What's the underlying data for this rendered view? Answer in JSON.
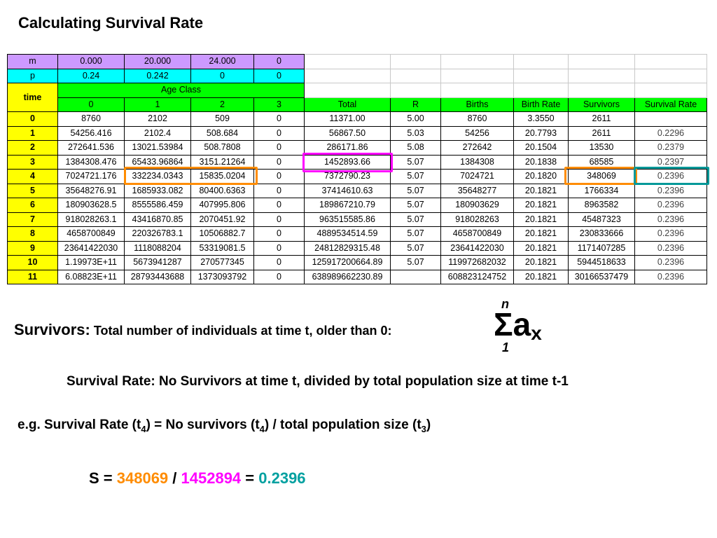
{
  "title": "Calculating Survival Rate",
  "table": {
    "m_label": "m",
    "m_values": [
      "0.000",
      "20.000",
      "24.000",
      "0"
    ],
    "p_label": "p",
    "p_values": [
      "0.24",
      "0.242",
      "0",
      "0"
    ],
    "time_label": "time",
    "age_class_label": "Age Class",
    "age_classes": [
      "0",
      "1",
      "2",
      "3"
    ],
    "extra_headers": [
      "Total",
      "R",
      "Births",
      "Birth Rate",
      "Survivors",
      "Survival Rate"
    ],
    "rows": [
      [
        "0",
        "8760",
        "2102",
        "509",
        "0",
        "11371.00",
        "5.00",
        "8760",
        "3.3550",
        "2611",
        ""
      ],
      [
        "1",
        "54256.416",
        "2102.4",
        "508.684",
        "0",
        "56867.50",
        "5.03",
        "54256",
        "20.7793",
        "2611",
        "0.2296"
      ],
      [
        "2",
        "272641.536",
        "13021.53984",
        "508.7808",
        "0",
        "286171.86",
        "5.08",
        "272642",
        "20.1504",
        "13530",
        "0.2379"
      ],
      [
        "3",
        "1384308.476",
        "65433.96864",
        "3151.21264",
        "0",
        "1452893.66",
        "5.07",
        "1384308",
        "20.1838",
        "68585",
        "0.2397"
      ],
      [
        "4",
        "7024721.176",
        "332234.0343",
        "15835.0204",
        "0",
        "7372790.23",
        "5.07",
        "7024721",
        "20.1820",
        "348069",
        "0.2396"
      ],
      [
        "5",
        "35648276.91",
        "1685933.082",
        "80400.6363",
        "0",
        "37414610.63",
        "5.07",
        "35648277",
        "20.1821",
        "1766334",
        "0.2396"
      ],
      [
        "6",
        "180903628.5",
        "8555586.459",
        "407995.806",
        "0",
        "189867210.79",
        "5.07",
        "180903629",
        "20.1821",
        "8963582",
        "0.2396"
      ],
      [
        "7",
        "918028263.1",
        "43416870.85",
        "2070451.92",
        "0",
        "963515585.86",
        "5.07",
        "918028263",
        "20.1821",
        "45487323",
        "0.2396"
      ],
      [
        "8",
        "4658700849",
        "220326783.1",
        "10506882.7",
        "0",
        "4889534514.59",
        "5.07",
        "4658700849",
        "20.1821",
        "230833666",
        "0.2396"
      ],
      [
        "9",
        "23641422030",
        "1118088204",
        "53319081.5",
        "0",
        "24812829315.48",
        "5.07",
        "23641422030",
        "20.1821",
        "1171407285",
        "0.2396"
      ],
      [
        "10",
        "1.19973E+11",
        "5673941287",
        "270577345",
        "0",
        "125917200664.89",
        "5.07",
        "119972682032",
        "20.1821",
        "5944518633",
        "0.2396"
      ],
      [
        "11",
        "6.08823E+11",
        "28793443688",
        "1373093792",
        "0",
        "638989662230.89",
        "",
        "608823124752",
        "20.1821",
        "30166537479",
        "0.2396"
      ]
    ]
  },
  "survivors_definition": {
    "term": "Survivors:",
    "text": "Total number of individuals at time t, older than 0:"
  },
  "sum_symbol": {
    "upper": "n",
    "symbol": "Σa",
    "subscript": "x",
    "lower": "1"
  },
  "survival_rate_definition": "Survival Rate: No Survivors at time t, divided by total population size at time t-1",
  "example": {
    "part1": "e.g. Survival Rate (t",
    "sub1": "4",
    "part2": ") = No survivors (t",
    "sub2": "4",
    "part3": ") / total population size (t",
    "sub3": "3",
    "part4": ")"
  },
  "formula": {
    "prefix": "S = ",
    "survivors": "348069",
    "slash": " / ",
    "total": "1452894",
    "equals": " = ",
    "result": "0.2396"
  },
  "colors": {
    "lavender": "#cc99ff",
    "cyan": "#00ffff",
    "green": "#00ff00",
    "yellow": "#ffff00",
    "orange": "#ff8c00",
    "magenta": "#ff00ff",
    "teal": "#009999"
  }
}
